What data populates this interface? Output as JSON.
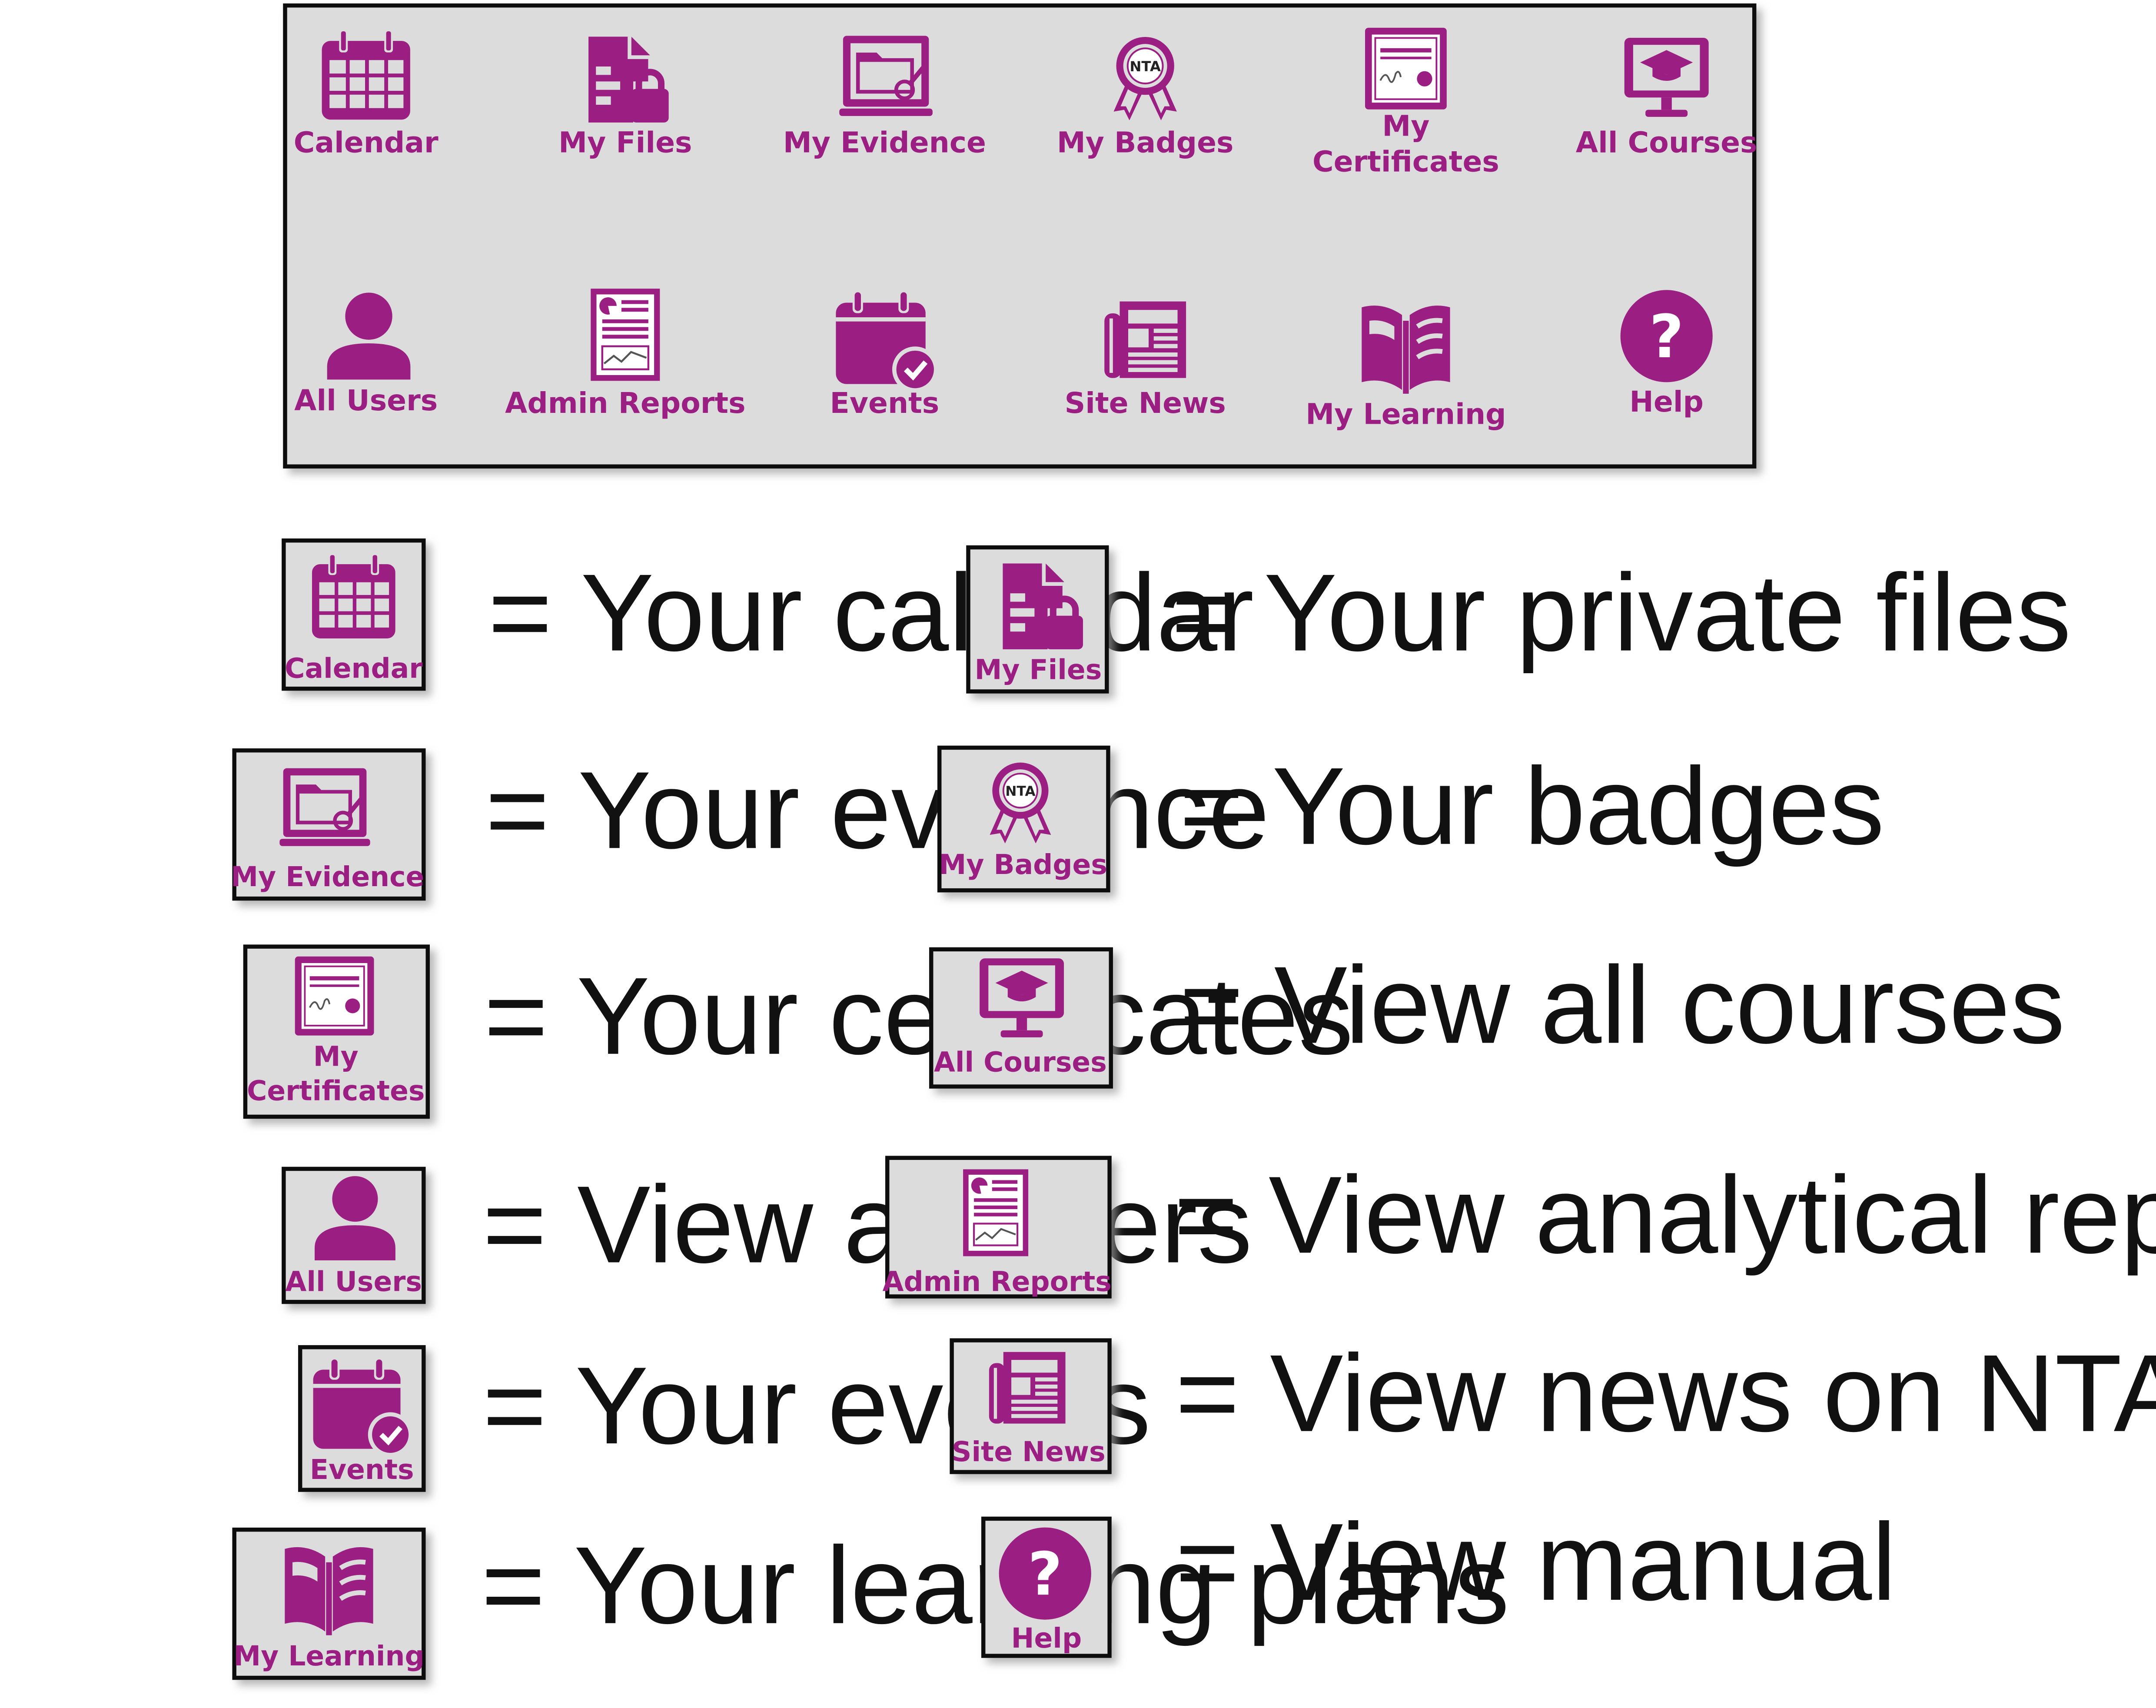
{
  "colors": {
    "accent": "#9b1f82",
    "panel_background": "#dcdcdc",
    "border": "#111111",
    "text": "#111111"
  },
  "menu": {
    "items": [
      {
        "key": "calendar",
        "icon": "calendar-icon",
        "label": "Calendar"
      },
      {
        "key": "my_files",
        "icon": "file-lock-icon",
        "label": "My Files"
      },
      {
        "key": "my_evidence",
        "icon": "evidence-folder-icon",
        "label": "My Evidence"
      },
      {
        "key": "my_badges",
        "icon": "badge-ribbon-icon",
        "label": "My Badges"
      },
      {
        "key": "my_certificates",
        "icon": "certificate-icon",
        "label": "My Certificates"
      },
      {
        "key": "all_courses",
        "icon": "monitor-mortarboard-icon",
        "label": "All Courses"
      },
      {
        "key": "all_users",
        "icon": "user-icon",
        "label": "All Users"
      },
      {
        "key": "admin_reports",
        "icon": "report-icon",
        "label": "Admin Reports"
      },
      {
        "key": "events",
        "icon": "calendar-check-icon",
        "label": "Events"
      },
      {
        "key": "site_news",
        "icon": "newspaper-icon",
        "label": "Site News"
      },
      {
        "key": "my_learning",
        "icon": "open-book-icon",
        "label": "My Learning"
      },
      {
        "key": "help",
        "icon": "help-icon",
        "label": "Help"
      }
    ]
  },
  "legend": {
    "entries": [
      {
        "key": "calendar",
        "label": "Calendar",
        "description": "= Your calendar"
      },
      {
        "key": "my_files",
        "label": "My Files",
        "description": "= Your private files"
      },
      {
        "key": "my_evidence",
        "label": "My Evidence",
        "description": "= Your evidence"
      },
      {
        "key": "my_badges",
        "label": "My Badges",
        "description": "= Your badges"
      },
      {
        "key": "my_certificates",
        "label": "My Certificates",
        "description": "= Your certificates"
      },
      {
        "key": "all_courses",
        "label": "All Courses",
        "description": "= View all courses"
      },
      {
        "key": "all_users",
        "label": "All Users",
        "description": "= View all users"
      },
      {
        "key": "admin_reports",
        "label": "Admin Reports",
        "description": "= View analytical reports"
      },
      {
        "key": "events",
        "label": "Events",
        "description": "= Your events"
      },
      {
        "key": "site_news",
        "label": "Site News",
        "description": "= View news on NTA website"
      },
      {
        "key": "my_learning",
        "label": "My Learning",
        "description": "= Your learning plans"
      },
      {
        "key": "help",
        "label": "Help",
        "description": "= View manual"
      }
    ]
  }
}
